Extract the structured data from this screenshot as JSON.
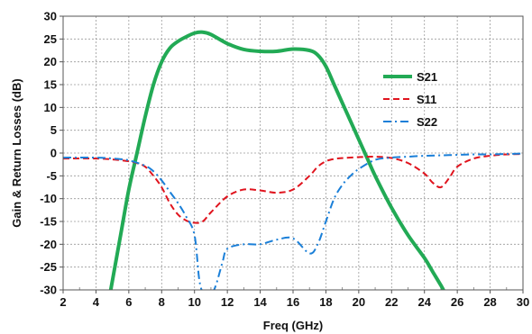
{
  "chart_data": {
    "type": "line",
    "title": "",
    "xlabel": "Freq (GHz)",
    "ylabel": "Gain & Return Losses (dB)",
    "xlim": [
      2,
      30
    ],
    "ylim": [
      -30,
      30
    ],
    "xticks": [
      2,
      4,
      6,
      8,
      10,
      12,
      14,
      16,
      18,
      20,
      22,
      24,
      26,
      28,
      30
    ],
    "yticks": [
      30,
      25,
      20,
      15,
      10,
      5,
      0,
      -5,
      -10,
      -15,
      -20,
      -25,
      -30
    ],
    "grid": true,
    "legend_position": "right",
    "series": [
      {
        "name": "S21",
        "color": "#22aa55",
        "style": "solid",
        "x": [
          4.9,
          5.5,
          6.0,
          6.5,
          7.0,
          7.5,
          8.0,
          8.5,
          9.0,
          9.5,
          10.0,
          10.5,
          11.0,
          12.0,
          13.0,
          14.0,
          15.0,
          16.0,
          17.0,
          17.5,
          18.0,
          18.5,
          19.0,
          19.5,
          20.0,
          20.5,
          21.0,
          22.0,
          23.0,
          24.0,
          24.5,
          25.0,
          25.3
        ],
        "y": [
          -30,
          -18,
          -8,
          0,
          8,
          15,
          20,
          23,
          24.5,
          25.5,
          26.3,
          26.5,
          26,
          24,
          22.7,
          22.3,
          22.3,
          22.8,
          22.5,
          21.5,
          19,
          15,
          11,
          7,
          3,
          -1,
          -5,
          -12,
          -18,
          -23,
          -26,
          -29,
          -31
        ]
      },
      {
        "name": "S11",
        "color": "#e0141e",
        "style": "dashed",
        "x": [
          2,
          4,
          5,
          6,
          6.5,
          7,
          7.5,
          8,
          8.5,
          9,
          9.5,
          10,
          10.5,
          11,
          12,
          13,
          14,
          15,
          16,
          17,
          17.5,
          18,
          18.5,
          19,
          20,
          21,
          22,
          23,
          24,
          24.5,
          25,
          25.5,
          26,
          27,
          28,
          29,
          30
        ],
        "y": [
          -1.2,
          -1.2,
          -1.4,
          -1.8,
          -2.2,
          -3,
          -5,
          -7.5,
          -11,
          -13.5,
          -14.8,
          -15.3,
          -15,
          -13,
          -9.5,
          -8,
          -8.2,
          -8.7,
          -8,
          -5,
          -3,
          -1.8,
          -1.3,
          -1.1,
          -0.9,
          -0.8,
          -1.1,
          -2.2,
          -4.5,
          -6.5,
          -7.5,
          -5.5,
          -3,
          -1.2,
          -0.6,
          -0.3,
          -0.2
        ]
      },
      {
        "name": "S22",
        "color": "#1a7fd8",
        "style": "dashdot",
        "x": [
          2,
          4,
          5,
          6,
          7,
          7.5,
          8,
          8.5,
          9,
          9.5,
          10,
          10.3,
          10.6,
          11,
          11.3,
          11.7,
          12,
          13,
          14,
          15,
          16,
          17,
          17.5,
          18,
          18.5,
          19,
          19.5,
          20,
          21,
          22,
          23,
          24,
          25,
          26,
          27,
          28,
          29,
          30
        ],
        "y": [
          -1,
          -1,
          -1.2,
          -1.6,
          -2.8,
          -4,
          -6,
          -8.5,
          -11,
          -14,
          -18,
          -28,
          -31,
          -31,
          -29,
          -24,
          -21,
          -20,
          -20,
          -19,
          -18.7,
          -22,
          -20,
          -15,
          -10,
          -7,
          -5,
          -3.5,
          -1.5,
          -1,
          -0.8,
          -0.6,
          -0.5,
          -0.4,
          -0.3,
          -0.3,
          -0.2,
          -0.1
        ]
      }
    ]
  }
}
